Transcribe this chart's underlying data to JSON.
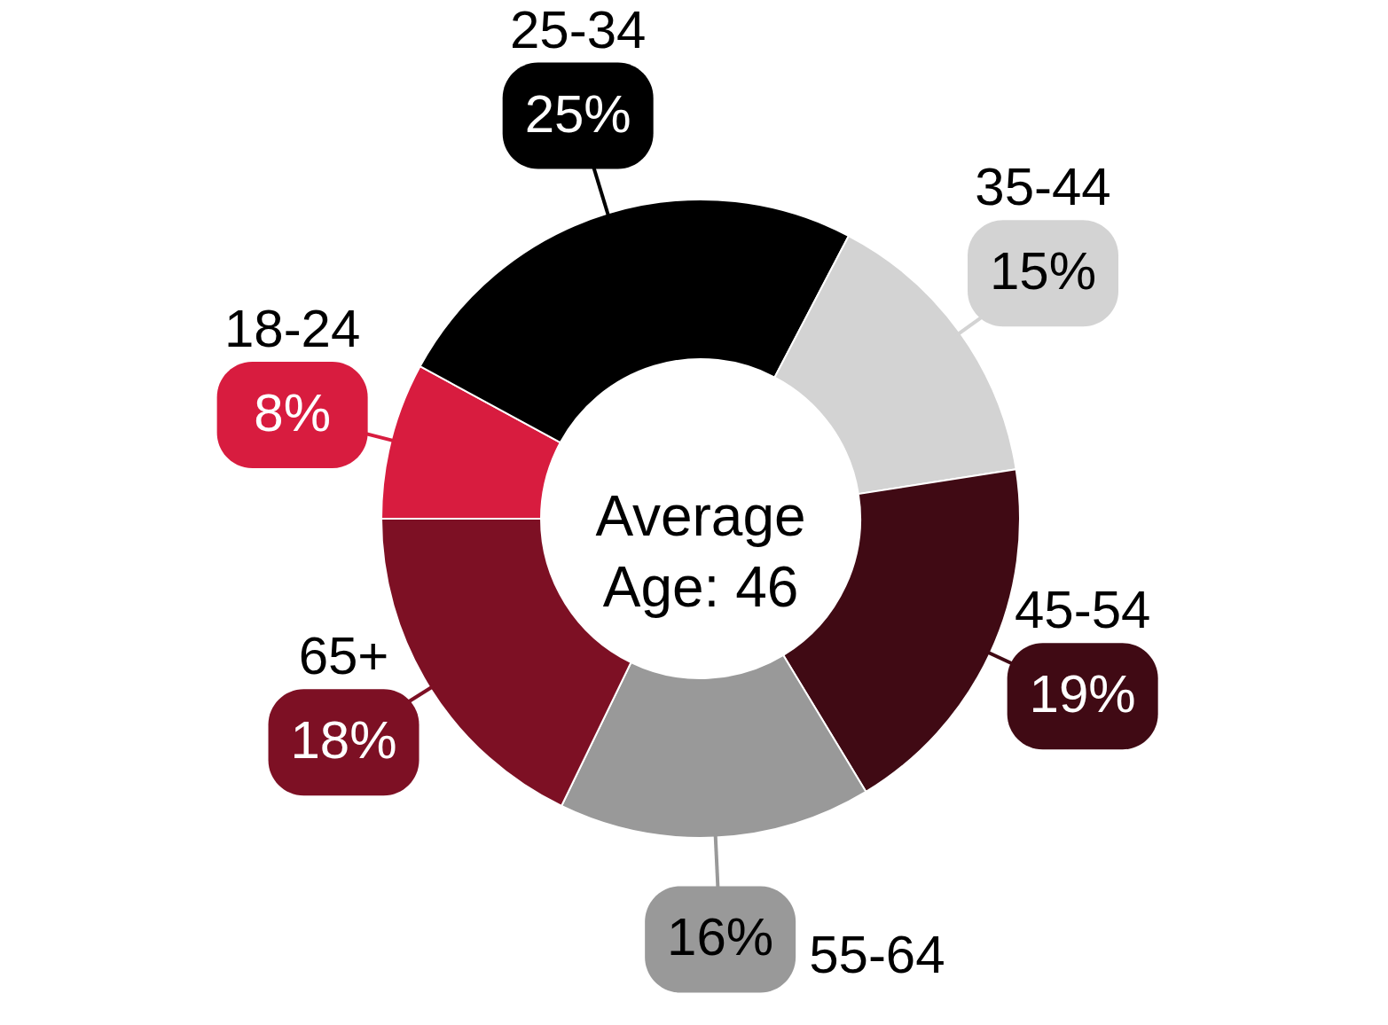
{
  "chart_data": {
    "type": "donut",
    "categories": [
      "18-24",
      "25-34",
      "35-44",
      "45-54",
      "55-64",
      "65+"
    ],
    "values": [
      8,
      25,
      15,
      19,
      16,
      18
    ],
    "value_labels": [
      "8%",
      "25%",
      "15%",
      "19%",
      "16%",
      "18%"
    ],
    "colors": [
      "#d81c3f",
      "#000000",
      "#d3d3d3",
      "#400a14",
      "#999999",
      "#7d1024"
    ],
    "annotations": [
      "Average\nAge: 46"
    ]
  }
}
